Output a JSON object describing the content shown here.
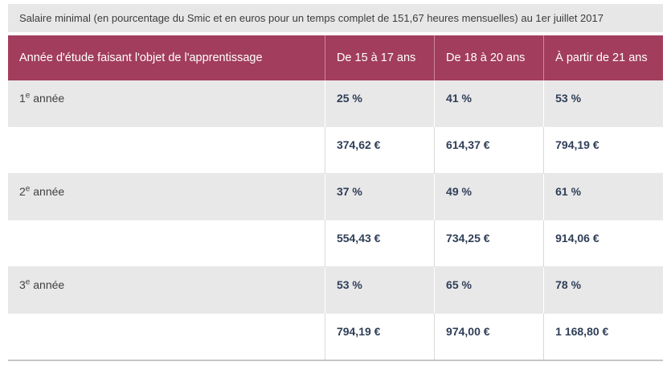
{
  "colors": {
    "header_bg": "#a23d5d",
    "header_text": "#ffffff",
    "shaded_row_bg": "#e8e8e8",
    "caption_bg": "#e7e7e7",
    "caption_text": "#3c3c3c",
    "value_text": "#2f3e58",
    "label_text": "#3f3f3f"
  },
  "chart_data": {
    "type": "table",
    "title": "Salaire minimal (en pourcentage du Smic et en euros pour un temps complet de 151,67 heures mensuelles) au 1er juillet 2017",
    "columns": [
      "Année d'étude faisant l'objet de l'apprentissage",
      "De 15 à 17 ans",
      "De 18 à 20 ans",
      "À partir de 21 ans"
    ],
    "rows": [
      {
        "year": {
          "num": "1",
          "sup": "e",
          "rest": " année"
        },
        "values": [
          "25 %",
          "41 %",
          "53 %"
        ]
      },
      {
        "year": {
          "num": "",
          "sup": "",
          "rest": ""
        },
        "values": [
          "374,62 €",
          "614,37 €",
          "794,19 €"
        ]
      },
      {
        "year": {
          "num": "2",
          "sup": "e",
          "rest": " année"
        },
        "values": [
          "37 %",
          "49 %",
          "61 %"
        ]
      },
      {
        "year": {
          "num": "",
          "sup": "",
          "rest": ""
        },
        "values": [
          "554,43 €",
          "734,25 €",
          "914,06 €"
        ]
      },
      {
        "year": {
          "num": "3",
          "sup": "e",
          "rest": " année"
        },
        "values": [
          "53 %",
          "65 %",
          "78 %"
        ]
      },
      {
        "year": {
          "num": "",
          "sup": "",
          "rest": ""
        },
        "values": [
          "794,19 €",
          "974,00 €",
          "1 168,80 €"
        ]
      }
    ]
  }
}
